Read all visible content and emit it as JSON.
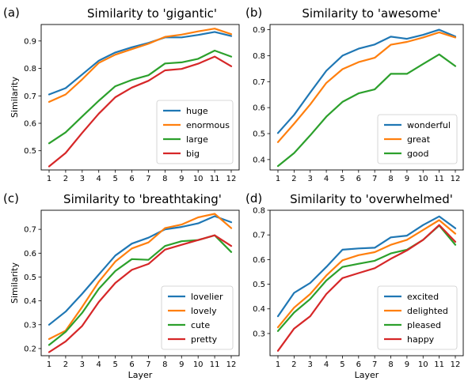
{
  "chart_data": [
    {
      "type": "line",
      "panel_label": "(a)",
      "title": "Similarity to 'gigantic'",
      "xlabel": "",
      "ylabel": "Similarity",
      "x": [
        1,
        2,
        3,
        4,
        5,
        6,
        7,
        8,
        9,
        10,
        11,
        12
      ],
      "ylim": [
        0.43,
        0.96
      ],
      "yticks": [
        0.5,
        0.6,
        0.7,
        0.8,
        0.9
      ],
      "legend_position": "lower-right",
      "series": [
        {
          "name": "huge",
          "color": "#1f77b4",
          "values": [
            0.705,
            0.728,
            0.778,
            0.828,
            0.858,
            0.877,
            0.893,
            0.913,
            0.913,
            0.922,
            0.933,
            0.918
          ]
        },
        {
          "name": "enormous",
          "color": "#ff7f0e",
          "values": [
            0.678,
            0.705,
            0.76,
            0.82,
            0.85,
            0.87,
            0.89,
            0.915,
            0.923,
            0.935,
            0.945,
            0.925
          ]
        },
        {
          "name": "large",
          "color": "#2ca02c",
          "values": [
            0.527,
            0.567,
            0.625,
            0.682,
            0.735,
            0.758,
            0.775,
            0.818,
            0.822,
            0.835,
            0.865,
            0.843
          ]
        },
        {
          "name": "big",
          "color": "#d62728",
          "values": [
            0.443,
            0.492,
            0.565,
            0.635,
            0.695,
            0.73,
            0.755,
            0.793,
            0.798,
            0.817,
            0.843,
            0.808
          ]
        }
      ]
    },
    {
      "type": "line",
      "panel_label": "(b)",
      "title": "Similarity to 'awesome'",
      "xlabel": "",
      "ylabel": "",
      "x": [
        1,
        2,
        3,
        4,
        5,
        6,
        7,
        8,
        9,
        10,
        11,
        12
      ],
      "ylim": [
        0.36,
        0.92
      ],
      "yticks": [
        0.4,
        0.5,
        0.6,
        0.7,
        0.8,
        0.9
      ],
      "legend_position": "lower-right",
      "series": [
        {
          "name": "wonderful",
          "color": "#1f77b4",
          "values": [
            0.502,
            0.572,
            0.658,
            0.742,
            0.8,
            0.827,
            0.843,
            0.873,
            0.865,
            0.88,
            0.9,
            0.874
          ]
        },
        {
          "name": "great",
          "color": "#ff7f0e",
          "values": [
            0.467,
            0.538,
            0.612,
            0.695,
            0.748,
            0.775,
            0.792,
            0.842,
            0.853,
            0.87,
            0.89,
            0.87
          ]
        },
        {
          "name": "good",
          "color": "#2ca02c",
          "values": [
            0.375,
            0.425,
            0.493,
            0.565,
            0.622,
            0.655,
            0.67,
            0.73,
            0.73,
            0.768,
            0.805,
            0.76
          ]
        }
      ]
    },
    {
      "type": "line",
      "panel_label": "(c)",
      "title": "Similarity to 'breathtaking'",
      "xlabel": "Layer",
      "ylabel": "Similarity",
      "x": [
        1,
        2,
        3,
        4,
        5,
        6,
        7,
        8,
        9,
        10,
        11,
        12
      ],
      "ylim": [
        0.17,
        0.78
      ],
      "yticks": [
        0.2,
        0.3,
        0.4,
        0.5,
        0.6,
        0.7
      ],
      "legend_position": "lower-right",
      "series": [
        {
          "name": "lovelier",
          "color": "#1f77b4",
          "values": [
            0.3,
            0.355,
            0.43,
            0.51,
            0.59,
            0.64,
            0.665,
            0.7,
            0.71,
            0.725,
            0.755,
            0.73
          ]
        },
        {
          "name": "lovely",
          "color": "#ff7f0e",
          "values": [
            0.24,
            0.275,
            0.375,
            0.48,
            0.565,
            0.62,
            0.645,
            0.705,
            0.72,
            0.75,
            0.765,
            0.705
          ]
        },
        {
          "name": "cute",
          "color": "#2ca02c",
          "values": [
            0.215,
            0.27,
            0.35,
            0.45,
            0.525,
            0.575,
            0.572,
            0.63,
            0.65,
            0.655,
            0.675,
            0.605
          ]
        },
        {
          "name": "pretty",
          "color": "#d62728",
          "values": [
            0.185,
            0.23,
            0.295,
            0.395,
            0.475,
            0.53,
            0.555,
            0.615,
            0.635,
            0.655,
            0.675,
            0.63
          ]
        }
      ]
    },
    {
      "type": "line",
      "panel_label": "(d)",
      "title": "Similarity to 'overwhelmed'",
      "xlabel": "Layer",
      "ylabel": "",
      "x": [
        1,
        2,
        3,
        4,
        5,
        6,
        7,
        8,
        9,
        10,
        11,
        12
      ],
      "ylim": [
        0.21,
        0.8
      ],
      "yticks": [
        0.3,
        0.4,
        0.5,
        0.6,
        0.7,
        0.8
      ],
      "legend_position": "lower-right",
      "series": [
        {
          "name": "excited",
          "color": "#1f77b4",
          "values": [
            0.37,
            0.465,
            0.505,
            0.57,
            0.64,
            0.645,
            0.648,
            0.69,
            0.697,
            0.74,
            0.775,
            0.727
          ]
        },
        {
          "name": "delighted",
          "color": "#ff7f0e",
          "values": [
            0.325,
            0.405,
            0.46,
            0.535,
            0.597,
            0.618,
            0.63,
            0.66,
            0.68,
            0.72,
            0.76,
            0.705
          ]
        },
        {
          "name": "pleased",
          "color": "#2ca02c",
          "values": [
            0.31,
            0.385,
            0.44,
            0.515,
            0.57,
            0.583,
            0.595,
            0.625,
            0.64,
            0.68,
            0.738,
            0.66
          ]
        },
        {
          "name": "happy",
          "color": "#d62728",
          "values": [
            0.23,
            0.32,
            0.37,
            0.46,
            0.525,
            0.545,
            0.565,
            0.603,
            0.637,
            0.68,
            0.74,
            0.672
          ]
        }
      ]
    }
  ]
}
